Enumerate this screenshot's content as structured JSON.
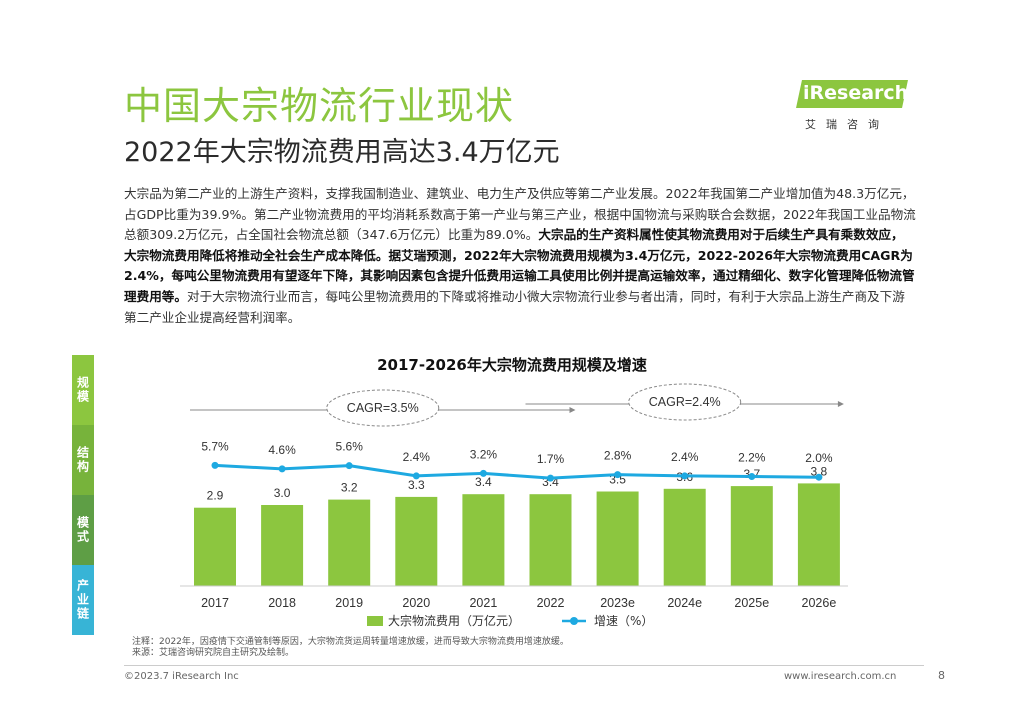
{
  "header": {
    "title": "中国大宗物流行业现状",
    "subtitle": "2022年大宗物流费用高达3.4万亿元"
  },
  "logo": {
    "brand": "iResearch",
    "cn": "艾瑞咨询",
    "color": "#8cc63f"
  },
  "body": {
    "p1": "大宗品为第二产业的上游生产资料，支撑我国制造业、建筑业、电力生产及供应等第二产业发展。2022年我国第二产业增加值为48.3万亿元，占GDP比重为39.9%。第二产业物流费用的平均消耗系数高于第一产业与第三产业，根据中国物流与采购联合会数据，2022年我国工业品物流总额309.2万亿元，占全国社会物流总额（347.6万亿元）比重为89.0%。",
    "p2_bold": "大宗品的生产资料属性使其物流费用对于后续生产具有乘数效应，大宗物流费用降低将推动全社会生产成本降低。据艾瑞预测，2022年大宗物流费用规模为3.4万亿元，2022-2026年大宗物流费用CAGR为2.4%，每吨公里物流费用有望逐年下降，其影响因素包含提升低费用运输工具使用比例并提高运输效率，通过精细化、数字化管理降低物流管理费用等。",
    "p3": "对于大宗物流行业而言，每吨公里物流费用的下降或将推动小微大宗物流行业参与者出清，同时，有利于大宗品上游生产商及下游第二产业企业提高经营利润率。"
  },
  "side_tabs": [
    "规模",
    "结构",
    "模式",
    "产业链"
  ],
  "chart_data": {
    "type": "bar",
    "title": "2017-2026年大宗物流费用规模及增速",
    "categories": [
      "2017",
      "2018",
      "2019",
      "2020",
      "2021",
      "2022",
      "2023e",
      "2024e",
      "2025e",
      "2026e"
    ],
    "series": [
      {
        "name": "大宗物流费用（万亿元）",
        "type": "bar",
        "values": [
          2.9,
          3.0,
          3.2,
          3.3,
          3.4,
          3.4,
          3.5,
          3.6,
          3.7,
          3.8
        ],
        "labels": [
          "2.9",
          "3.0",
          "3.2",
          "3.3",
          "3.4",
          "3.4",
          "3.5",
          "3.6",
          "3.7",
          "3.8"
        ],
        "color": "#8cc63f"
      },
      {
        "name": "增速（%）",
        "type": "line",
        "values": [
          5.7,
          4.6,
          5.6,
          2.4,
          3.2,
          1.7,
          2.8,
          2.4,
          2.2,
          2.0
        ],
        "labels": [
          "5.7%",
          "4.6%",
          "5.6%",
          "2.4%",
          "3.2%",
          "1.7%",
          "2.8%",
          "2.4%",
          "2.2%",
          "2.0%"
        ],
        "color": "#1ea9e1"
      }
    ],
    "annotations": [
      {
        "text": "CAGR=3.5%",
        "span": [
          "2017",
          "2022"
        ]
      },
      {
        "text": "CAGR=2.4%",
        "span": [
          "2022",
          "2026e"
        ]
      }
    ],
    "legend": "bottom-center",
    "grid": false
  },
  "footer": {
    "note": "注释：2022年，因疫情下交通管制等原因，大宗物流货运周转量增速放缓，进而导致大宗物流费用增速放缓。",
    "source": "来源：艾瑞咨询研究院自主研究及绘制。",
    "copyright": "©2023.7 iResearch Inc",
    "website": "www.iresearch.com.cn",
    "page": "8"
  }
}
